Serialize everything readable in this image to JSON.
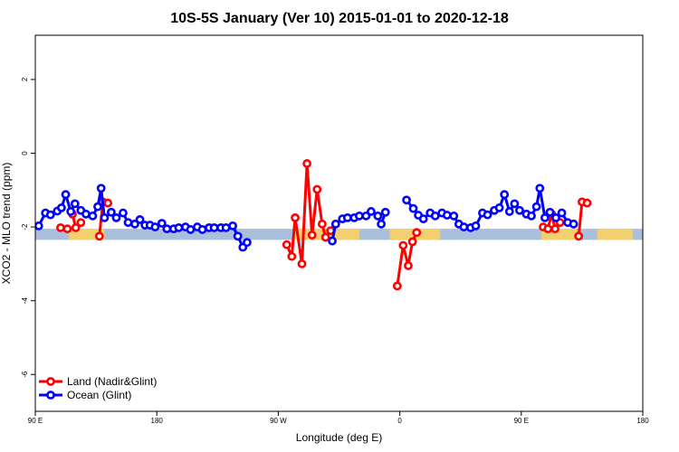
{
  "chart_data": {
    "type": "line",
    "title": "10S-5S January (Ver 10)   2015-01-01 to 2020-12-18",
    "xlabel": "Longitude (deg E)",
    "ylabel": "XCO2 - MLO trend (ppm)",
    "xlim": [
      90,
      450
    ],
    "ylim": [
      -7,
      3.2
    ],
    "x_ticks": [
      {
        "value": 90,
        "label": "90 E"
      },
      {
        "value": 162,
        "label": "180"
      },
      {
        "value": 234,
        "label": "90 W"
      },
      {
        "value": 306,
        "label": "0"
      },
      {
        "value": 378,
        "label": "90 E"
      },
      {
        "value": 450,
        "label": "180"
      }
    ],
    "y_ticks": [
      {
        "value": -6,
        "label": "-6"
      },
      {
        "value": -4,
        "label": "-4"
      },
      {
        "value": -2,
        "label": "-2"
      },
      {
        "value": 0,
        "label": "0"
      },
      {
        "value": 2,
        "label": "2"
      }
    ],
    "legend_position": "bottom-left",
    "background_band": {
      "y_range": [
        -2.35,
        -2.05
      ],
      "color": "#a9bfdc",
      "land_color": "#f3cf6f"
    },
    "land_band_spans": [
      [
        110,
        131
      ],
      [
        243,
        282
      ],
      [
        300,
        330
      ],
      [
        390,
        411
      ],
      [
        423,
        444
      ]
    ],
    "series": [
      {
        "name": "Land (Nadir&Glint)",
        "color": "#ff0000",
        "segments": [
          [
            [
              105,
              -2.02
            ],
            [
              109,
              -2.05
            ]
          ],
          [
            [
              112,
              -1.65
            ],
            [
              114,
              -2.02
            ],
            [
              117,
              -1.88
            ]
          ],
          [
            [
              128,
              -2.25
            ],
            [
              130,
              -1.32
            ],
            [
              133,
              -1.35
            ]
          ],
          [
            [
              239,
              -2.48
            ],
            [
              242,
              -2.8
            ],
            [
              244,
              -1.75
            ],
            [
              248,
              -3.0
            ],
            [
              251,
              -0.28
            ],
            [
              254,
              -2.22
            ],
            [
              257,
              -0.98
            ],
            [
              260,
              -1.92
            ],
            [
              262,
              -2.28
            ],
            [
              265,
              -2.1
            ]
          ],
          [
            [
              304.5,
              -3.6
            ],
            [
              308,
              -2.5
            ],
            [
              311,
              -3.05
            ],
            [
              313.5,
              -2.4
            ],
            [
              316,
              -2.15
            ]
          ],
          [
            [
              391,
              -2.0
            ],
            [
              393.8,
              -2.05
            ],
            [
              396,
              -1.65
            ],
            [
              398,
              -2.05
            ],
            [
              401,
              -1.88
            ]
          ],
          [
            [
              412,
              -2.25
            ],
            [
              414,
              -1.32
            ],
            [
              417,
              -1.35
            ]
          ]
        ]
      },
      {
        "name": "Ocean (Glint)",
        "color": "#0000ff",
        "segments": [
          [
            [
              92,
              -1.97
            ],
            [
              96,
              -1.62
            ],
            [
              99,
              -1.67
            ],
            [
              103,
              -1.57
            ],
            [
              105.5,
              -1.48
            ],
            [
              108,
              -1.12
            ],
            [
              111,
              -1.58
            ],
            [
              113.5,
              -1.37
            ],
            [
              117,
              -1.55
            ],
            [
              120,
              -1.65
            ],
            [
              124,
              -1.7
            ],
            [
              127,
              -1.45
            ],
            [
              129,
              -0.95
            ],
            [
              131,
              -1.75
            ],
            [
              135,
              -1.6
            ],
            [
              138,
              -1.75
            ],
            [
              142,
              -1.62
            ],
            [
              145,
              -1.88
            ],
            [
              149,
              -1.92
            ],
            [
              152,
              -1.8
            ],
            [
              155,
              -1.95
            ],
            [
              158,
              -1.95
            ],
            [
              161,
              -2.0
            ],
            [
              165,
              -1.9
            ],
            [
              168,
              -2.05
            ],
            [
              172,
              -2.05
            ],
            [
              175,
              -2.02
            ],
            [
              179,
              -2.0
            ],
            [
              182,
              -2.07
            ],
            [
              186,
              -2.0
            ],
            [
              189,
              -2.07
            ],
            [
              193,
              -2.02
            ],
            [
              196,
              -2.02
            ],
            [
              200,
              -2.02
            ],
            [
              203,
              -2.02
            ],
            [
              207,
              -1.97
            ],
            [
              210,
              -2.25
            ],
            [
              213,
              -2.55
            ],
            [
              215.5,
              -2.42
            ]
          ],
          [
            [
              266,
              -2.38
            ],
            [
              268,
              -1.92
            ],
            [
              272,
              -1.78
            ],
            [
              275,
              -1.75
            ],
            [
              279,
              -1.75
            ],
            [
              282,
              -1.7
            ],
            [
              286,
              -1.7
            ],
            [
              289,
              -1.58
            ],
            [
              293,
              -1.7
            ],
            [
              295,
              -1.92
            ],
            [
              297.5,
              -1.6
            ]
          ],
          [
            [
              310,
              -1.27
            ],
            [
              314,
              -1.5
            ],
            [
              317,
              -1.68
            ],
            [
              320,
              -1.78
            ],
            [
              324,
              -1.62
            ],
            [
              327,
              -1.7
            ],
            [
              331,
              -1.62
            ],
            [
              334,
              -1.68
            ],
            [
              338,
              -1.7
            ],
            [
              341,
              -1.92
            ],
            [
              344,
              -2.0
            ],
            [
              348,
              -2.02
            ],
            [
              351,
              -1.97
            ],
            [
              355,
              -1.62
            ],
            [
              358,
              -1.67
            ],
            [
              362,
              -1.55
            ],
            [
              365,
              -1.48
            ],
            [
              368,
              -1.12
            ],
            [
              371,
              -1.58
            ],
            [
              374,
              -1.37
            ],
            [
              377,
              -1.55
            ],
            [
              381,
              -1.65
            ],
            [
              384,
              -1.7
            ],
            [
              387,
              -1.45
            ],
            [
              389,
              -0.95
            ],
            [
              392,
              -1.75
            ],
            [
              395,
              -1.6
            ],
            [
              398.5,
              -1.75
            ],
            [
              402,
              -1.62
            ],
            [
              405.5,
              -1.88
            ],
            [
              409,
              -1.92
            ]
          ]
        ]
      }
    ]
  }
}
